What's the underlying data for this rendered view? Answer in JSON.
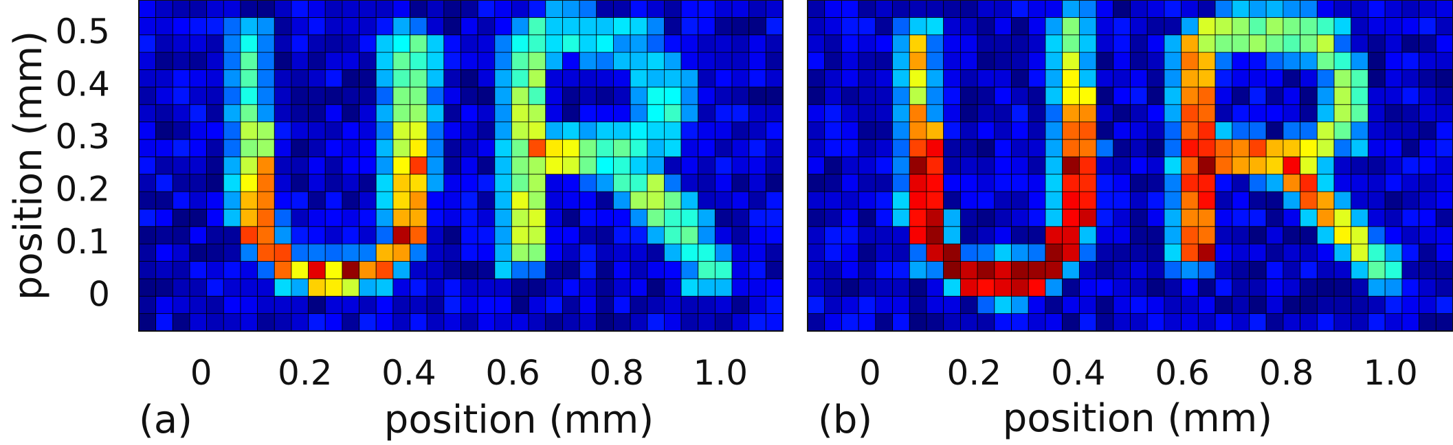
{
  "chart_data": [
    {
      "type": "heatmap",
      "panel_label": "(a)",
      "xlabel": "position (mm)",
      "ylabel": "position (mm)",
      "x_ticks": [
        "0",
        "0.2",
        "0.4",
        "0.6",
        "0.8",
        "1.0"
      ],
      "y_ticks": [
        "0",
        "0.1",
        "0.2",
        "0.3",
        "0.4",
        "0.5"
      ],
      "xlim": [
        -0.12,
        1.12
      ],
      "ylim": [
        -0.07,
        0.56
      ],
      "grid": true,
      "colormap": "jet",
      "cell_size_mm": 0.032,
      "cols": 38,
      "rows": 19,
      "x_start_mm": -0.12,
      "y_start_mm": -0.07,
      "background": [
        0,
        15
      ],
      "strokes": [
        {
          "path": [
            [
              0.09,
              0.46
            ],
            [
              0.09,
              0.36
            ],
            [
              0.1,
              0.24
            ],
            [
              0.1,
              0.16
            ],
            [
              0.12,
              0.09
            ],
            [
              0.17,
              0.04
            ],
            [
              0.26,
              0.03
            ],
            [
              0.34,
              0.05
            ],
            [
              0.38,
              0.09
            ],
            [
              0.39,
              0.2
            ],
            [
              0.39,
              0.36
            ],
            [
              0.39,
              0.46
            ]
          ],
          "values": [
            45,
            40,
            60,
            70,
            82,
            70,
            60,
            75,
            72,
            68,
            52,
            42
          ],
          "width": 0.032
        },
        {
          "path": [
            [
              0.61,
              0.07
            ],
            [
              0.61,
              0.28
            ],
            [
              0.61,
              0.46
            ]
          ],
          "values": [
            55,
            55,
            45
          ],
          "width": 0.032
        },
        {
          "path": [
            [
              0.61,
              0.46
            ],
            [
              0.7,
              0.48
            ],
            [
              0.82,
              0.46
            ],
            [
              0.88,
              0.38
            ],
            [
              0.86,
              0.3
            ],
            [
              0.76,
              0.25
            ],
            [
              0.66,
              0.26
            ]
          ],
          "values": [
            45,
            35,
            30,
            32,
            40,
            42,
            62
          ],
          "width": 0.032
        },
        {
          "path": [
            [
              0.76,
              0.25
            ],
            [
              0.84,
              0.18
            ],
            [
              0.93,
              0.09
            ],
            [
              0.96,
              0.04
            ]
          ],
          "values": [
            42,
            50,
            42,
            38
          ],
          "width": 0.032
        }
      ],
      "spots": [
        {
          "x": 0.27,
          "y": 0.03,
          "value": 98
        },
        {
          "x": 0.22,
          "y": 0.03,
          "value": 90
        },
        {
          "x": 0.38,
          "y": 0.1,
          "value": 95
        },
        {
          "x": 0.4,
          "y": 0.22,
          "value": 82
        },
        {
          "x": 0.64,
          "y": 0.28,
          "value": 80
        },
        {
          "x": 0.12,
          "y": 0.22,
          "value": 74
        },
        {
          "x": 0.11,
          "y": 0.2,
          "value": 76
        }
      ]
    },
    {
      "type": "heatmap",
      "panel_label": "(b)",
      "xlabel": "position (mm)",
      "ylabel": "",
      "x_ticks": [
        "0",
        "0.2",
        "0.4",
        "0.6",
        "0.8",
        "1.0"
      ],
      "y_ticks": [],
      "xlim": [
        -0.12,
        1.12
      ],
      "ylim": [
        -0.07,
        0.56
      ],
      "grid": true,
      "colormap": "jet",
      "cell_size_mm": 0.032,
      "cols": 38,
      "rows": 19,
      "x_start_mm": -0.12,
      "y_start_mm": -0.07,
      "background": [
        0,
        15
      ],
      "strokes": [
        {
          "path": [
            [
              0.09,
              0.46
            ],
            [
              0.09,
              0.36
            ],
            [
              0.1,
              0.24
            ],
            [
              0.1,
              0.14
            ],
            [
              0.13,
              0.07
            ],
            [
              0.2,
              0.03
            ],
            [
              0.27,
              0.02
            ],
            [
              0.34,
              0.05
            ],
            [
              0.38,
              0.12
            ],
            [
              0.39,
              0.26
            ],
            [
              0.38,
              0.4
            ],
            [
              0.38,
              0.48
            ]
          ],
          "values": [
            68,
            62,
            88,
            92,
            95,
            92,
            92,
            95,
            92,
            80,
            65,
            48
          ],
          "width": 0.032
        },
        {
          "path": [
            [
              0.61,
              0.07
            ],
            [
              0.61,
              0.28
            ],
            [
              0.61,
              0.46
            ]
          ],
          "values": [
            75,
            85,
            70
          ],
          "width": 0.032
        },
        {
          "path": [
            [
              0.61,
              0.46
            ],
            [
              0.7,
              0.48
            ],
            [
              0.84,
              0.47
            ],
            [
              0.9,
              0.4
            ],
            [
              0.89,
              0.3
            ],
            [
              0.78,
              0.24
            ],
            [
              0.66,
              0.26
            ]
          ],
          "values": [
            62,
            48,
            50,
            48,
            52,
            72,
            80
          ],
          "width": 0.032
        },
        {
          "path": [
            [
              0.8,
              0.22
            ],
            [
              0.86,
              0.15
            ],
            [
              0.92,
              0.09
            ],
            [
              0.96,
              0.05
            ]
          ],
          "values": [
            82,
            68,
            55,
            42
          ],
          "width": 0.032
        }
      ],
      "spots": [
        {
          "x": 0.1,
          "y": 0.22,
          "value": 98
        },
        {
          "x": 0.11,
          "y": 0.12,
          "value": 98
        },
        {
          "x": 0.23,
          "y": 0.03,
          "value": 98
        },
        {
          "x": 0.27,
          "y": 0.03,
          "value": 98
        },
        {
          "x": 0.33,
          "y": 0.07,
          "value": 98
        },
        {
          "x": 0.38,
          "y": 0.22,
          "value": 98
        },
        {
          "x": 0.62,
          "y": 0.22,
          "value": 98
        },
        {
          "x": 0.62,
          "y": 0.08,
          "value": 96
        },
        {
          "x": 0.79,
          "y": 0.22,
          "value": 88
        }
      ]
    }
  ]
}
